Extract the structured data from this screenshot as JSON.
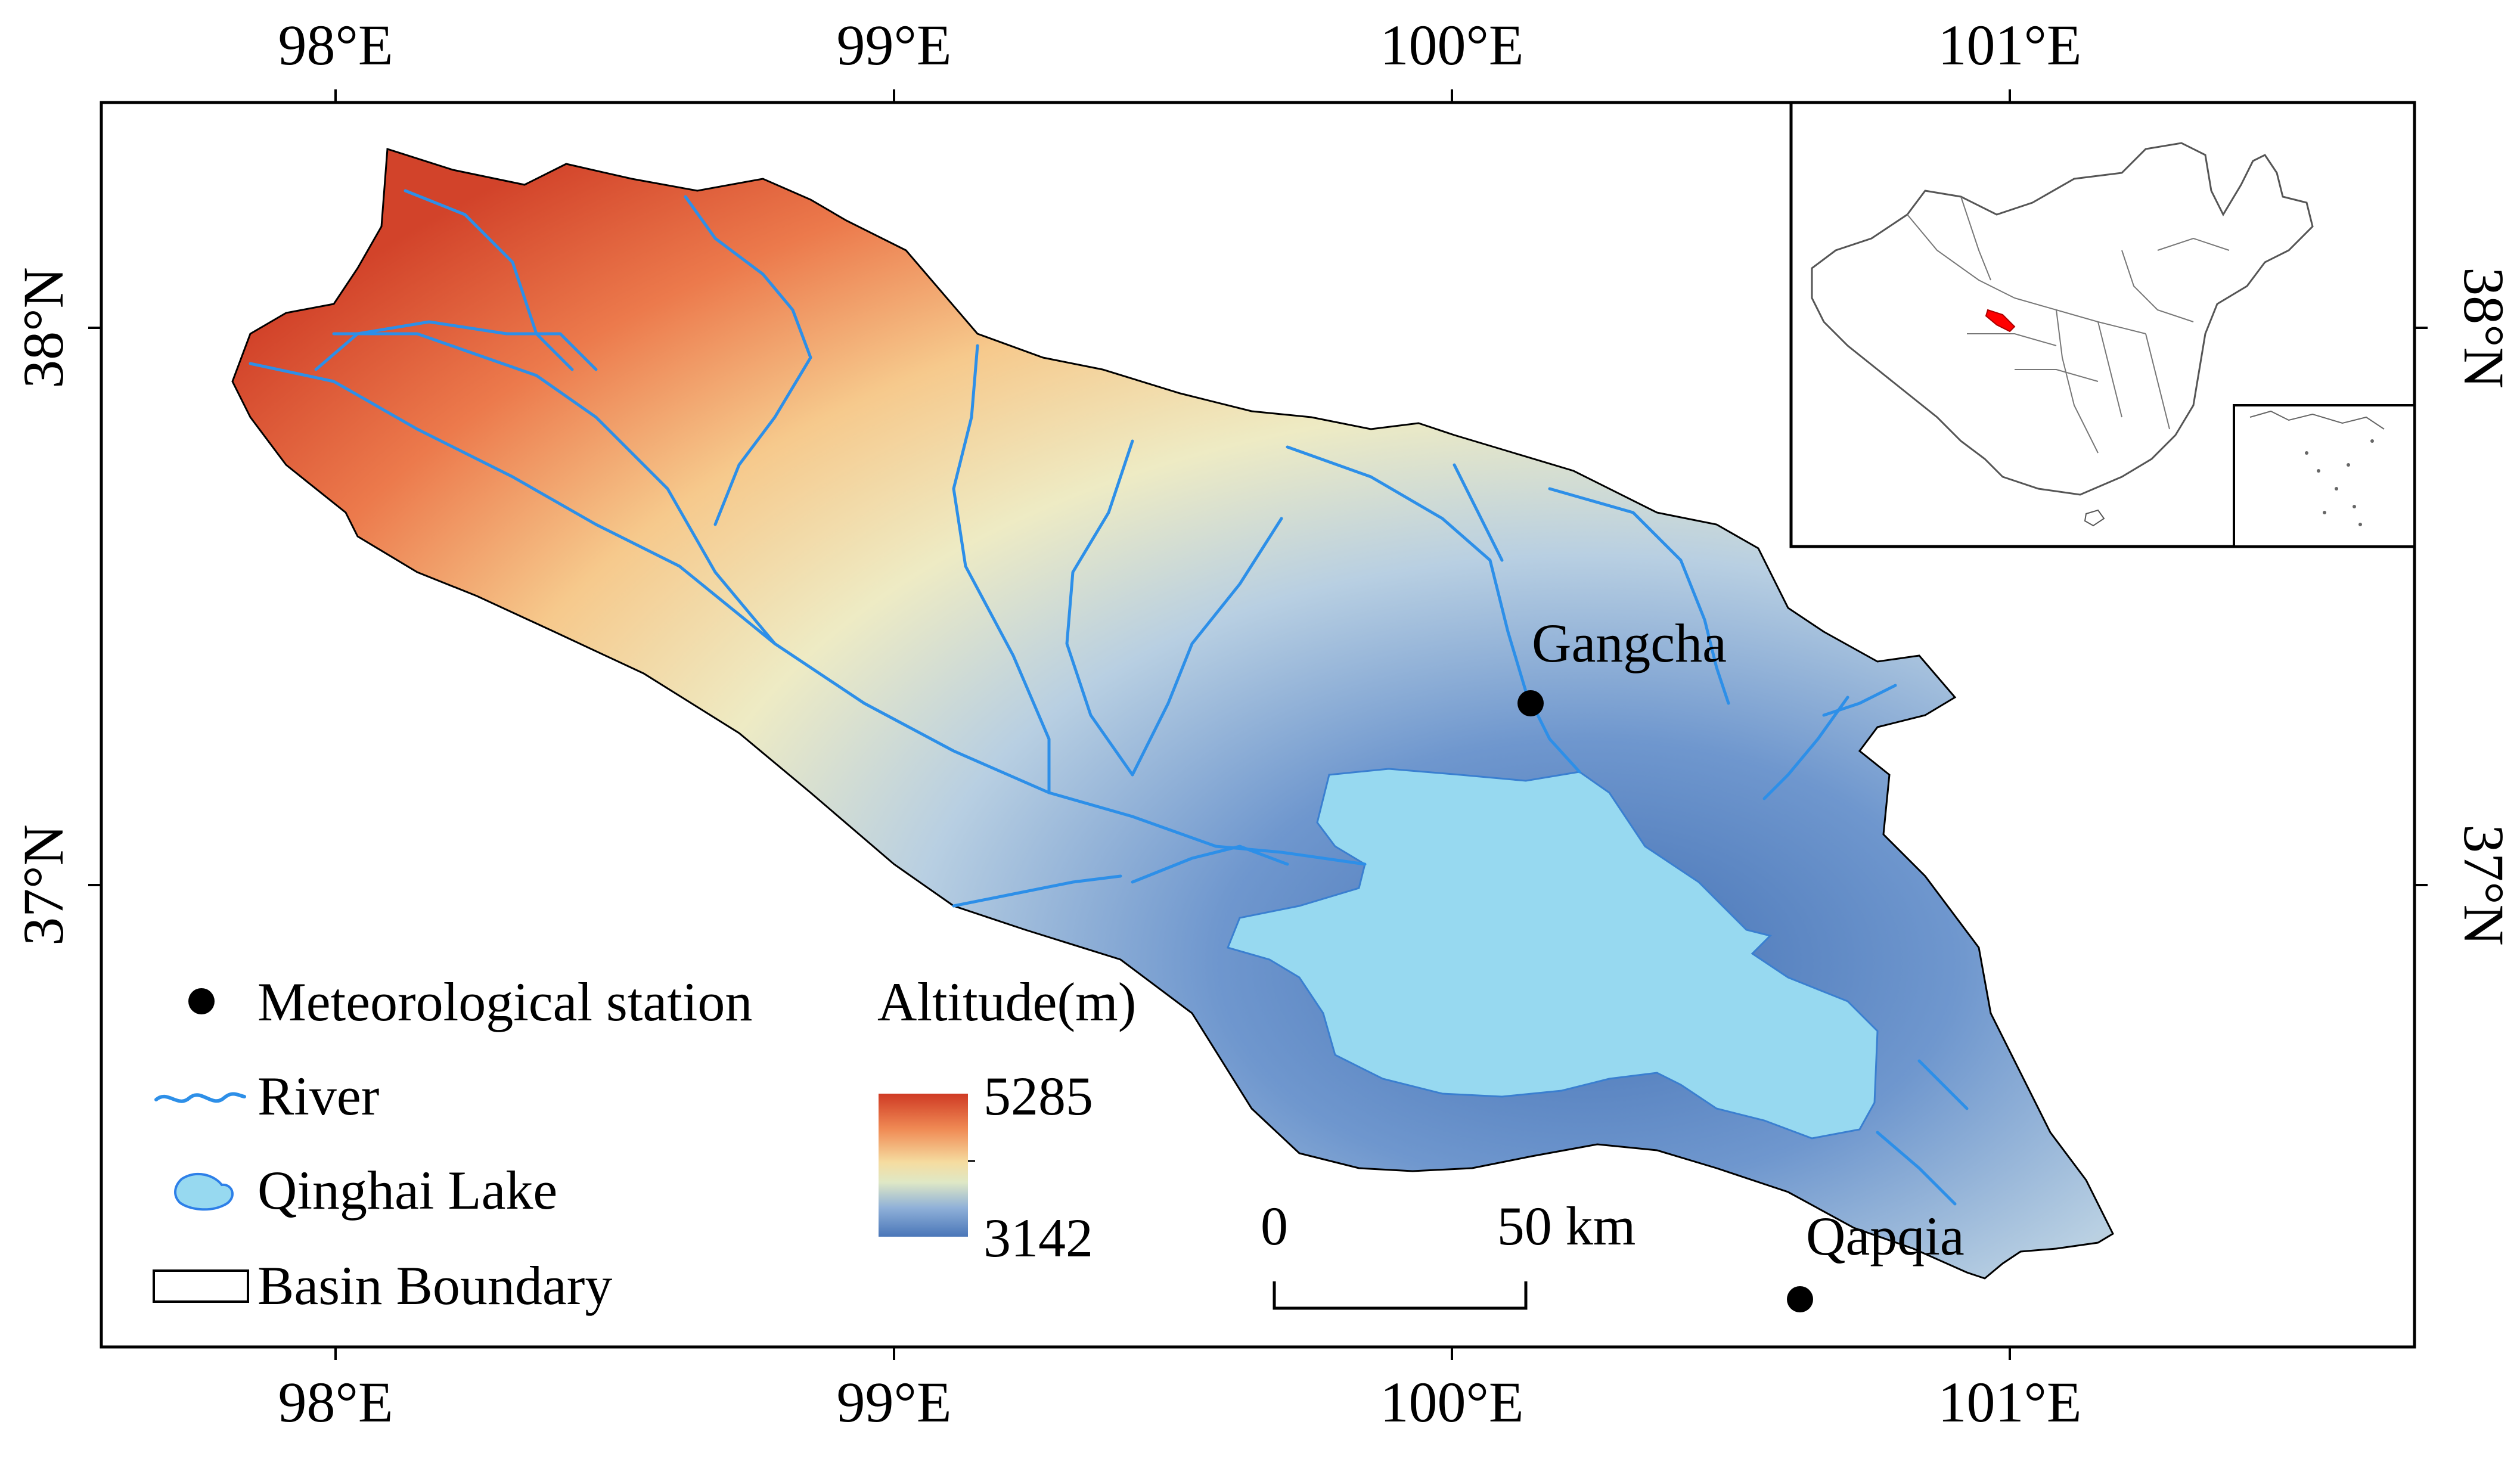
{
  "axes": {
    "top_lon": [
      "98°E",
      "99°E",
      "100°E",
      "101°E"
    ],
    "bottom_lon": [
      "98°E",
      "99°E",
      "100°E",
      "101°E"
    ],
    "left_lat": [
      "38°N",
      "37°N"
    ],
    "right_lat": [
      "38°N",
      "37°N"
    ]
  },
  "stations": {
    "gangcha": "Gangcha",
    "qapqia": "Qapqia"
  },
  "legend": {
    "station": "Meteorological station",
    "river": "River",
    "lake": "Qinghai Lake",
    "boundary": "Basin Boundary"
  },
  "altitude": {
    "title": "Altitude(m)",
    "max": "5285",
    "min": "3142",
    "ramp_colors": [
      "#d7301f",
      "#fc8d59",
      "#fee08b",
      "#e8eec4",
      "#91bfdb",
      "#4575b4"
    ]
  },
  "scale_bar": {
    "zero": "0",
    "distance": "50 km"
  },
  "colors": {
    "lake": "#97d9f0",
    "river": "#2d8fe8",
    "highlight": "#ff0000"
  }
}
